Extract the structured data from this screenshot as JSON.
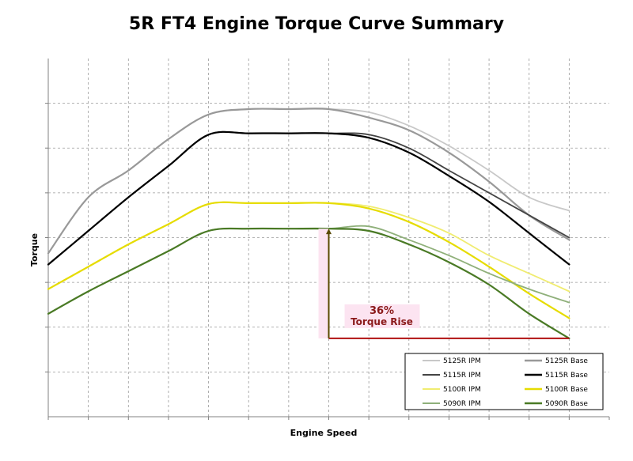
{
  "chart_data": {
    "type": "line",
    "title": "5R FT4 Engine Torque Curve Summary",
    "xlabel": "Engine Speed",
    "ylabel": "Torque",
    "xlim": [
      0,
      14
    ],
    "ylim": [
      0,
      8
    ],
    "grid": true,
    "legend_position": "bottom-right",
    "series": [
      {
        "name": "5125R IPM",
        "color": "#c8c8c8",
        "width": 1.8,
        "x": [
          0,
          1,
          2,
          3,
          4,
          5,
          6,
          7,
          8,
          9,
          10,
          11,
          12,
          13
        ],
        "y": [
          3.65,
          4.9,
          5.5,
          6.2,
          6.75,
          6.87,
          6.87,
          6.87,
          6.8,
          6.5,
          6.05,
          5.5,
          4.9,
          4.6
        ]
      },
      {
        "name": "5125R Base",
        "color": "#999999",
        "width": 2.2,
        "x": [
          0,
          1,
          2,
          3,
          4,
          5,
          6,
          7,
          8,
          9,
          10,
          11,
          12,
          13
        ],
        "y": [
          3.65,
          4.9,
          5.5,
          6.2,
          6.75,
          6.87,
          6.87,
          6.87,
          6.68,
          6.4,
          5.9,
          5.25,
          4.5,
          3.95
        ]
      },
      {
        "name": "5115R IPM",
        "color": "#444444",
        "width": 1.8,
        "x": [
          0,
          1,
          2,
          3,
          4,
          5,
          6,
          7,
          8,
          9,
          10,
          11,
          12,
          13
        ],
        "y": [
          3.4,
          4.15,
          4.9,
          5.6,
          6.3,
          6.33,
          6.33,
          6.33,
          6.3,
          6.0,
          5.5,
          5.0,
          4.5,
          4.0
        ]
      },
      {
        "name": "5115R Base",
        "color": "#000000",
        "width": 2.2,
        "x": [
          0,
          1,
          2,
          3,
          4,
          5,
          6,
          7,
          8,
          9,
          10,
          11,
          12,
          13
        ],
        "y": [
          3.4,
          4.15,
          4.9,
          5.6,
          6.3,
          6.33,
          6.33,
          6.33,
          6.23,
          5.9,
          5.38,
          4.8,
          4.1,
          3.4
        ]
      },
      {
        "name": "5100R IPM",
        "color": "#f0ec70",
        "width": 1.8,
        "x": [
          0,
          1,
          2,
          3,
          4,
          5,
          6,
          7,
          8,
          9,
          10,
          11,
          12,
          13
        ],
        "y": [
          2.85,
          3.35,
          3.85,
          4.3,
          4.75,
          4.77,
          4.77,
          4.77,
          4.7,
          4.45,
          4.1,
          3.6,
          3.2,
          2.8
        ]
      },
      {
        "name": "5100R Base",
        "color": "#e6dc00",
        "width": 2.2,
        "x": [
          0,
          1,
          2,
          3,
          4,
          5,
          6,
          7,
          8,
          9,
          10,
          11,
          12,
          13
        ],
        "y": [
          2.85,
          3.35,
          3.85,
          4.3,
          4.75,
          4.77,
          4.77,
          4.77,
          4.65,
          4.35,
          3.9,
          3.35,
          2.75,
          2.2
        ]
      },
      {
        "name": "5090R IPM",
        "color": "#8fb07a",
        "width": 1.8,
        "x": [
          0,
          1,
          2,
          3,
          4,
          5,
          6,
          7,
          8,
          9,
          10,
          11,
          12,
          13
        ],
        "y": [
          2.3,
          2.8,
          3.25,
          3.7,
          4.15,
          4.2,
          4.2,
          4.2,
          4.25,
          3.95,
          3.6,
          3.2,
          2.85,
          2.55
        ]
      },
      {
        "name": "5090R Base",
        "color": "#4a7a25",
        "width": 2.2,
        "x": [
          0,
          1,
          2,
          3,
          4,
          5,
          6,
          7,
          8,
          9,
          10,
          11,
          12,
          13
        ],
        "y": [
          2.3,
          2.8,
          3.25,
          3.7,
          4.15,
          4.2,
          4.2,
          4.2,
          4.15,
          3.85,
          3.45,
          2.95,
          2.3,
          1.75
        ]
      }
    ],
    "annotation": {
      "line1": "36%",
      "line2": "Torque Rise",
      "color": "#8b1a1a",
      "x": 7,
      "y_top": 4.2,
      "y_bottom": 1.75,
      "x_end": 13
    }
  }
}
